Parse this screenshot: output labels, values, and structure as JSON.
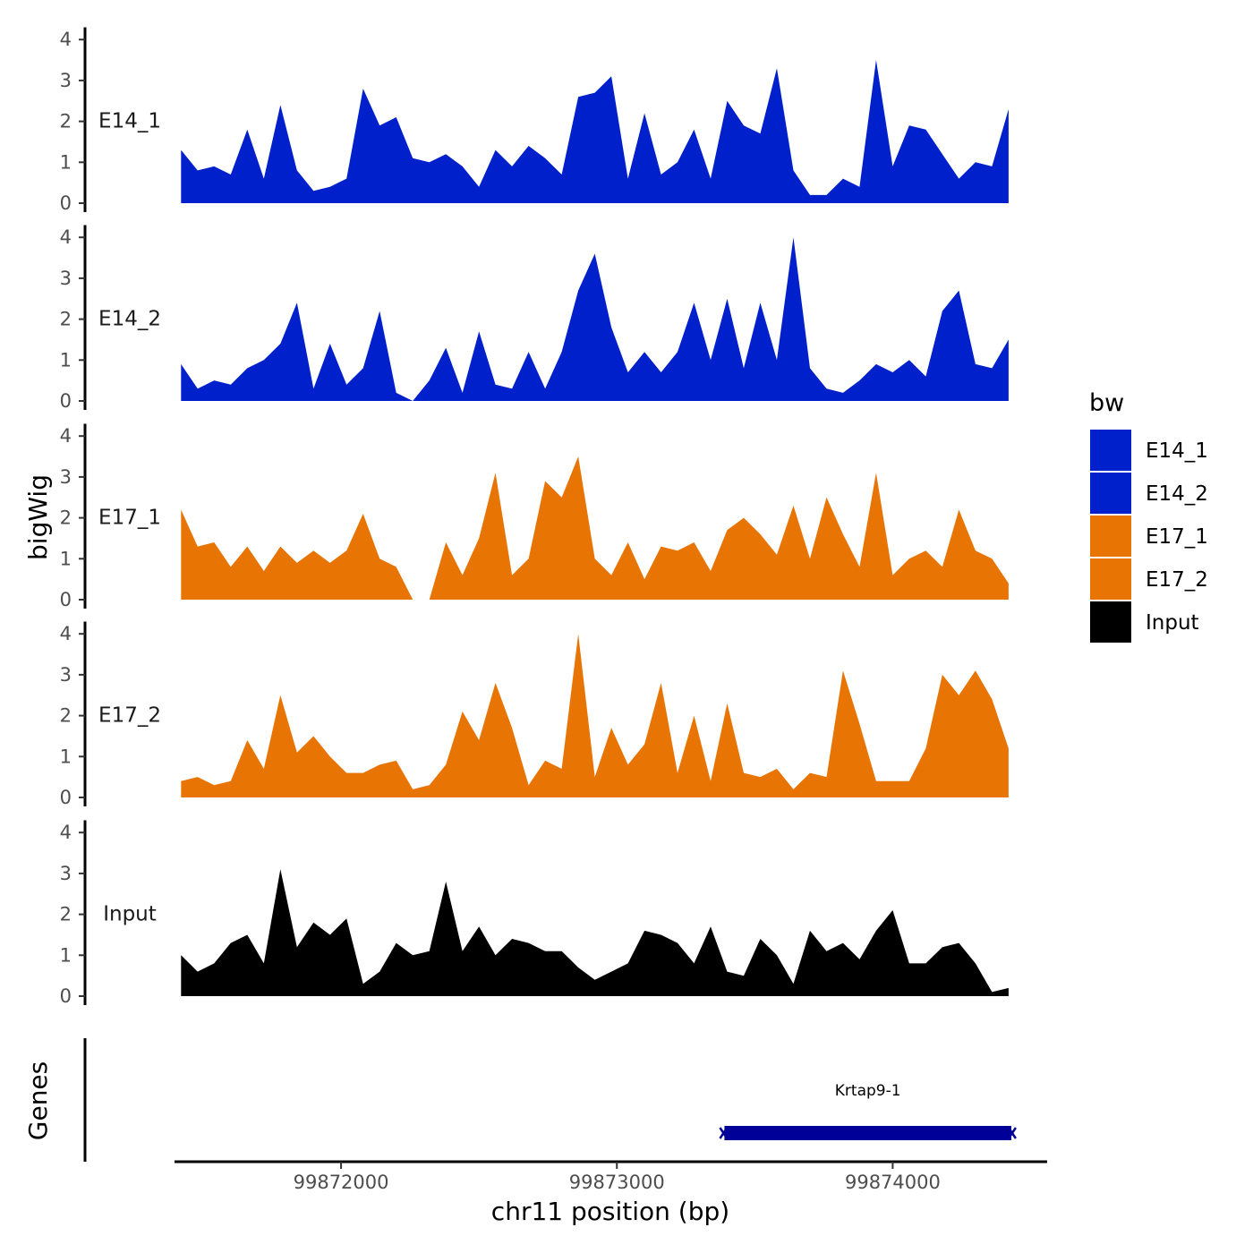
{
  "chart_data": {
    "type": "area",
    "title": "",
    "xlabel": "chr11 position (bp)",
    "ylabel": "bigWig",
    "genes_axis_label": "Genes",
    "xlim": [
      99871380,
      99874560
    ],
    "x_ticks": [
      99872000,
      99873000,
      99874000
    ],
    "x_tick_labels": [
      "99872000",
      "99873000",
      "99874000"
    ],
    "ylim": [
      0,
      4.3
    ],
    "y_ticks": [
      0,
      1,
      2,
      3,
      4
    ],
    "y_tick_labels": [
      "0",
      "1",
      "2",
      "3",
      "4"
    ],
    "legend_title": "bw",
    "series": [
      {
        "name": "E14_1",
        "color": "#0020CC",
        "x": [
          99871420,
          99871480,
          99871540,
          99871600,
          99871660,
          99871720,
          99871780,
          99871840,
          99871900,
          99871960,
          99872020,
          99872080,
          99872140,
          99872200,
          99872260,
          99872320,
          99872380,
          99872440,
          99872500,
          99872560,
          99872620,
          99872680,
          99872740,
          99872800,
          99872860,
          99872920,
          99872980,
          99873040,
          99873100,
          99873160,
          99873220,
          99873280,
          99873340,
          99873400,
          99873460,
          99873520,
          99873580,
          99873640,
          99873700,
          99873760,
          99873820,
          99873880,
          99873940,
          99874000,
          99874060,
          99874120,
          99874180,
          99874240,
          99874300,
          99874360,
          99874420
        ],
        "y": [
          1.3,
          0.8,
          0.9,
          0.7,
          1.8,
          0.6,
          2.4,
          0.8,
          0.3,
          0.4,
          0.6,
          2.8,
          1.9,
          2.1,
          1.1,
          1.0,
          1.2,
          0.9,
          0.4,
          1.3,
          0.9,
          1.4,
          1.1,
          0.7,
          2.6,
          2.7,
          3.1,
          0.6,
          2.2,
          0.7,
          1.0,
          1.8,
          0.6,
          2.5,
          1.9,
          1.7,
          3.3,
          0.8,
          0.2,
          0.2,
          0.6,
          0.4,
          3.5,
          0.9,
          1.9,
          1.8,
          1.2,
          0.6,
          1.0,
          0.9,
          2.3
        ]
      },
      {
        "name": "E14_2",
        "color": "#0020CC",
        "x": [
          99871420,
          99871480,
          99871540,
          99871600,
          99871660,
          99871720,
          99871780,
          99871840,
          99871900,
          99871960,
          99872020,
          99872080,
          99872140,
          99872200,
          99872260,
          99872320,
          99872380,
          99872440,
          99872500,
          99872560,
          99872620,
          99872680,
          99872740,
          99872800,
          99872860,
          99872920,
          99872980,
          99873040,
          99873100,
          99873160,
          99873220,
          99873280,
          99873340,
          99873400,
          99873460,
          99873520,
          99873580,
          99873640,
          99873700,
          99873760,
          99873820,
          99873880,
          99873940,
          99874000,
          99874060,
          99874120,
          99874180,
          99874240,
          99874300,
          99874360,
          99874420
        ],
        "y": [
          0.9,
          0.3,
          0.5,
          0.4,
          0.8,
          1.0,
          1.4,
          2.4,
          0.3,
          1.4,
          0.4,
          0.8,
          2.2,
          0.2,
          0.0,
          0.5,
          1.3,
          0.2,
          1.7,
          0.4,
          0.3,
          1.2,
          0.3,
          1.2,
          2.7,
          3.6,
          1.8,
          0.7,
          1.2,
          0.7,
          1.2,
          2.4,
          1.0,
          2.5,
          0.8,
          2.4,
          1.0,
          4.0,
          0.8,
          0.3,
          0.2,
          0.5,
          0.9,
          0.7,
          1.0,
          0.6,
          2.2,
          2.7,
          0.9,
          0.8,
          1.5
        ]
      },
      {
        "name": "E17_1",
        "color": "#E87404",
        "x": [
          99871420,
          99871480,
          99871540,
          99871600,
          99871660,
          99871720,
          99871780,
          99871840,
          99871900,
          99871960,
          99872020,
          99872080,
          99872140,
          99872200,
          99872260,
          99872320,
          99872380,
          99872440,
          99872500,
          99872560,
          99872620,
          99872680,
          99872740,
          99872800,
          99872860,
          99872920,
          99872980,
          99873040,
          99873100,
          99873160,
          99873220,
          99873280,
          99873340,
          99873400,
          99873460,
          99873520,
          99873580,
          99873640,
          99873700,
          99873760,
          99873820,
          99873880,
          99873940,
          99874000,
          99874060,
          99874120,
          99874180,
          99874240,
          99874300,
          99874360,
          99874420
        ],
        "y": [
          2.2,
          1.3,
          1.4,
          0.8,
          1.3,
          0.7,
          1.3,
          0.9,
          1.2,
          0.9,
          1.2,
          2.1,
          1.0,
          0.8,
          0.0,
          0.0,
          1.4,
          0.6,
          1.5,
          3.1,
          0.6,
          1.0,
          2.9,
          2.5,
          3.5,
          1.0,
          0.6,
          1.4,
          0.5,
          1.3,
          1.2,
          1.4,
          0.7,
          1.7,
          2.0,
          1.6,
          1.1,
          2.3,
          1.0,
          2.5,
          1.6,
          0.8,
          3.1,
          0.6,
          1.0,
          1.2,
          0.8,
          2.2,
          1.2,
          1.0,
          0.4
        ]
      },
      {
        "name": "E17_2",
        "color": "#E87404",
        "x": [
          99871420,
          99871480,
          99871540,
          99871600,
          99871660,
          99871720,
          99871780,
          99871840,
          99871900,
          99871960,
          99872020,
          99872080,
          99872140,
          99872200,
          99872260,
          99872320,
          99872380,
          99872440,
          99872500,
          99872560,
          99872620,
          99872680,
          99872740,
          99872800,
          99872860,
          99872920,
          99872980,
          99873040,
          99873100,
          99873160,
          99873220,
          99873280,
          99873340,
          99873400,
          99873460,
          99873520,
          99873580,
          99873640,
          99873700,
          99873760,
          99873820,
          99873880,
          99873940,
          99874000,
          99874060,
          99874120,
          99874180,
          99874240,
          99874300,
          99874360,
          99874420
        ],
        "y": [
          0.4,
          0.5,
          0.3,
          0.4,
          1.4,
          0.7,
          2.5,
          1.1,
          1.5,
          1.0,
          0.6,
          0.6,
          0.8,
          0.9,
          0.2,
          0.3,
          0.8,
          2.1,
          1.4,
          2.8,
          1.7,
          0.3,
          0.9,
          0.7,
          4.0,
          0.5,
          1.7,
          0.8,
          1.3,
          2.8,
          0.6,
          2.0,
          0.4,
          2.3,
          0.6,
          0.5,
          0.7,
          0.2,
          0.6,
          0.5,
          3.1,
          1.8,
          0.4,
          0.4,
          0.4,
          1.2,
          3.0,
          2.5,
          3.1,
          2.4,
          1.2
        ]
      },
      {
        "name": "Input",
        "color": "#000000",
        "x": [
          99871420,
          99871480,
          99871540,
          99871600,
          99871660,
          99871720,
          99871780,
          99871840,
          99871900,
          99871960,
          99872020,
          99872080,
          99872140,
          99872200,
          99872260,
          99872320,
          99872380,
          99872440,
          99872500,
          99872560,
          99872620,
          99872680,
          99872740,
          99872800,
          99872860,
          99872920,
          99872980,
          99873040,
          99873100,
          99873160,
          99873220,
          99873280,
          99873340,
          99873400,
          99873460,
          99873520,
          99873580,
          99873640,
          99873700,
          99873760,
          99873820,
          99873880,
          99873940,
          99874000,
          99874060,
          99874120,
          99874180,
          99874240,
          99874300,
          99874360,
          99874420
        ],
        "y": [
          1.0,
          0.6,
          0.8,
          1.3,
          1.5,
          0.8,
          3.1,
          1.2,
          1.8,
          1.5,
          1.9,
          0.3,
          0.6,
          1.3,
          1.0,
          1.1,
          2.8,
          1.1,
          1.7,
          1.0,
          1.4,
          1.3,
          1.1,
          1.1,
          0.7,
          0.4,
          0.6,
          0.8,
          1.6,
          1.5,
          1.3,
          0.8,
          1.7,
          0.6,
          0.5,
          1.4,
          1.0,
          0.3,
          1.6,
          1.1,
          1.3,
          0.9,
          1.6,
          2.1,
          0.8,
          0.8,
          1.2,
          1.3,
          0.8,
          0.1,
          0.2
        ]
      }
    ],
    "genes": [
      {
        "name": "Krtap9-1",
        "start": 99873390,
        "end": 99874430,
        "color": "#000099"
      }
    ]
  }
}
